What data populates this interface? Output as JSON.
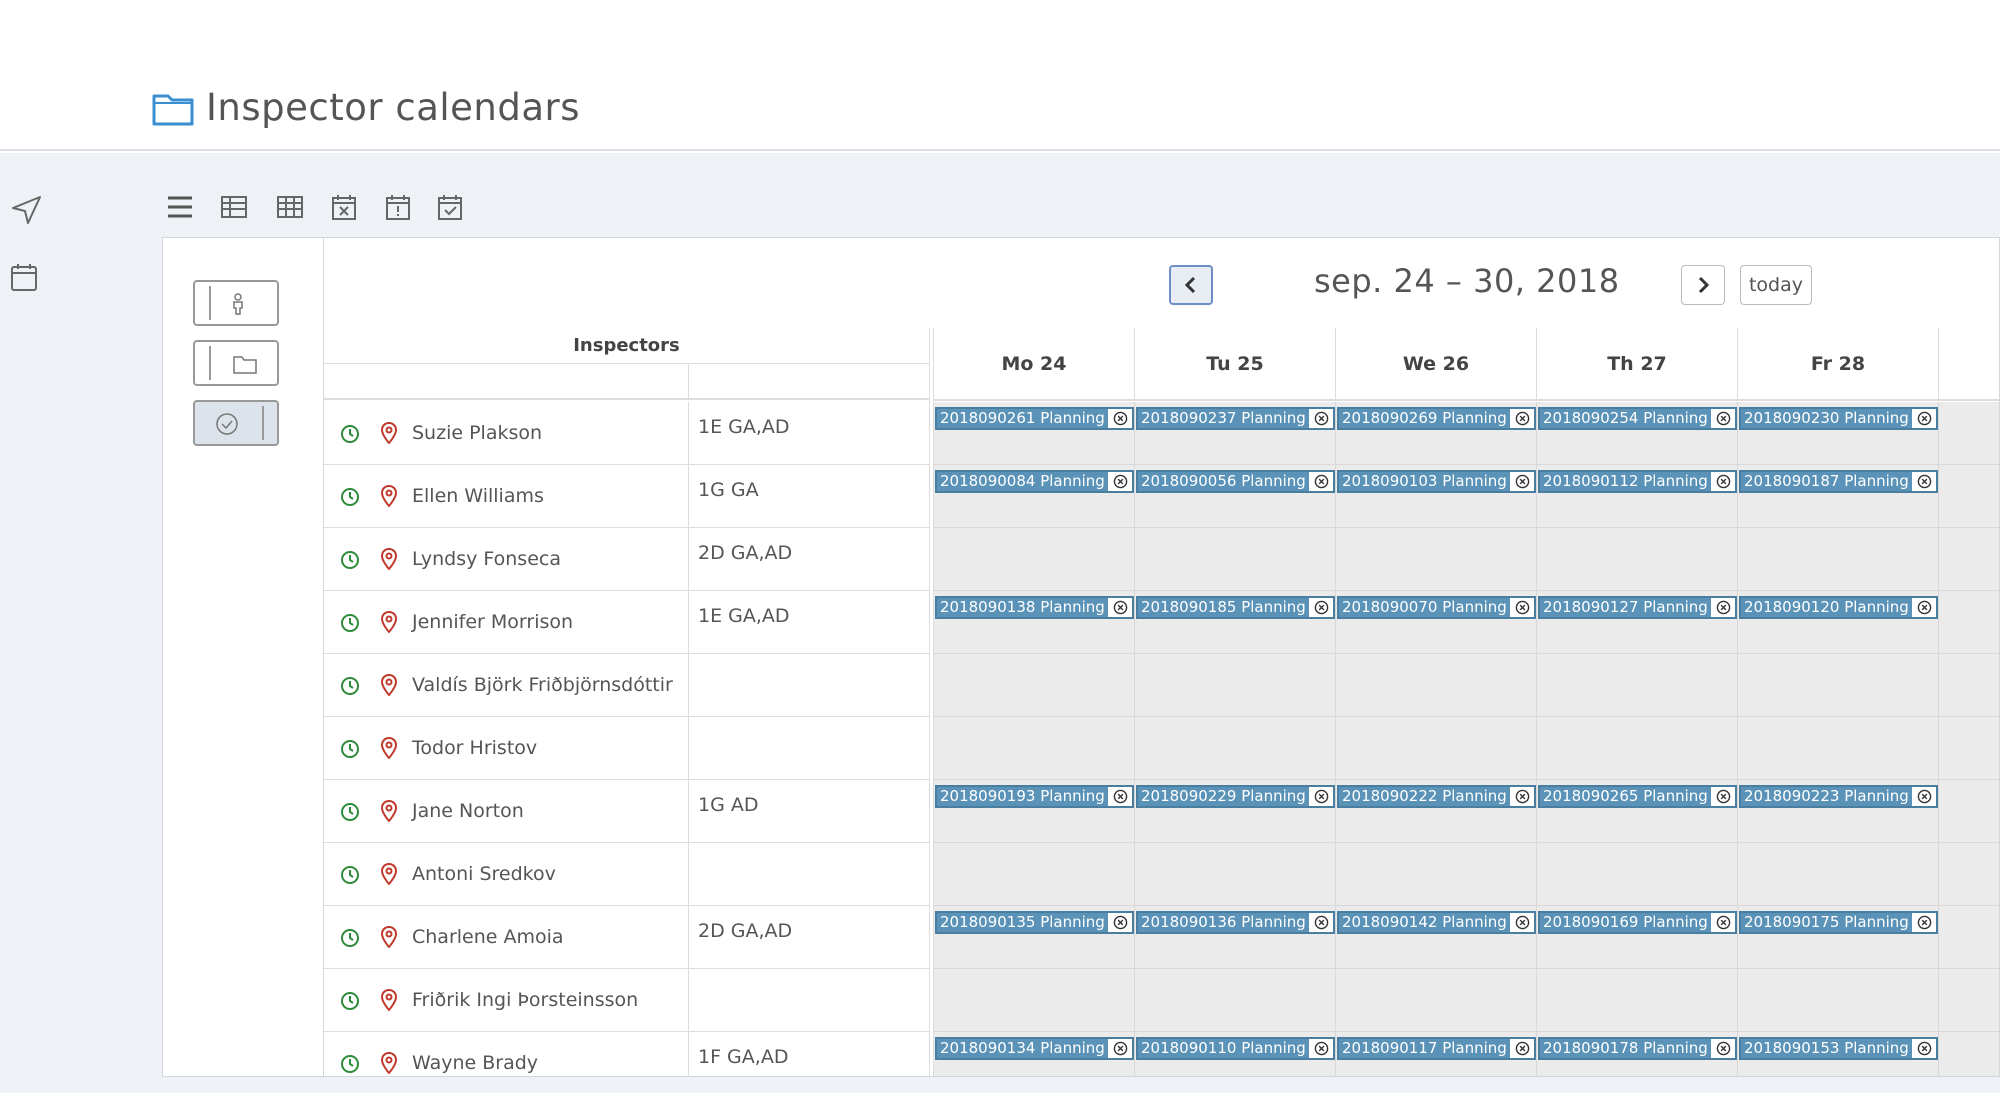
{
  "header": {
    "title": "Inspector calendars"
  },
  "nav": {
    "range": "sep. 24 – 30, 2018",
    "today_label": "today"
  },
  "grid": {
    "inspectors_header": "Inspectors",
    "days": [
      "Mo 24",
      "Tu 25",
      "We 26",
      "Th 27",
      "Fr 28"
    ],
    "rows": [
      {
        "name": "Suzie Plakson",
        "grade": "1E GA,AD",
        "events": [
          "2018090261 Planning",
          "2018090237 Planning",
          "2018090269 Planning",
          "2018090254 Planning",
          "2018090230 Planning"
        ]
      },
      {
        "name": "Ellen Williams",
        "grade": "1G GA",
        "events": [
          "2018090084 Planning",
          "2018090056 Planning",
          "2018090103 Planning",
          "2018090112 Planning",
          "2018090187 Planning"
        ]
      },
      {
        "name": "Lyndsy Fonseca",
        "grade": "2D GA,AD",
        "events": []
      },
      {
        "name": "Jennifer Morrison",
        "grade": "1E GA,AD",
        "events": [
          "2018090138 Planning",
          "2018090185 Planning",
          "2018090070 Planning",
          "2018090127 Planning",
          "2018090120 Planning"
        ]
      },
      {
        "name": "Valdís Björk Friðbjörnsdóttir",
        "grade": "",
        "events": []
      },
      {
        "name": "Todor Hristov",
        "grade": "",
        "events": []
      },
      {
        "name": "Jane Norton",
        "grade": "1G AD",
        "events": [
          "2018090193 Planning",
          "2018090229 Planning",
          "2018090222 Planning",
          "2018090265 Planning",
          "2018090223 Planning"
        ]
      },
      {
        "name": "Antoni Sredkov",
        "grade": "",
        "events": []
      },
      {
        "name": "Charlene Amoia",
        "grade": "2D GA,AD",
        "events": [
          "2018090135 Planning",
          "2018090136 Planning",
          "2018090142 Planning",
          "2018090169 Planning",
          "2018090175 Planning"
        ]
      },
      {
        "name": "Friðrik Ingi Þorsteinsson",
        "grade": "",
        "events": []
      },
      {
        "name": "Wayne Brady",
        "grade": "1F GA,AD",
        "events": [
          "2018090134 Planning",
          "2018090110 Planning",
          "2018090117 Planning",
          "2018090178 Planning",
          "2018090153 Planning"
        ]
      }
    ]
  },
  "colors": {
    "event_bg": "#5b93b8",
    "clock_green": "#2e8b3a",
    "pin_red": "#c0392b",
    "grey_cell": "#ebebeb"
  },
  "icons": [
    "folder-icon",
    "send-icon",
    "calendar-icon",
    "menu-icon",
    "table-icon",
    "grid-icon",
    "calendar-x-icon",
    "calendar-alert-icon",
    "calendar-check-icon",
    "person-icon",
    "clock-icon",
    "pin-icon",
    "chevron-left-icon",
    "chevron-right-icon",
    "close-circle-icon"
  ]
}
